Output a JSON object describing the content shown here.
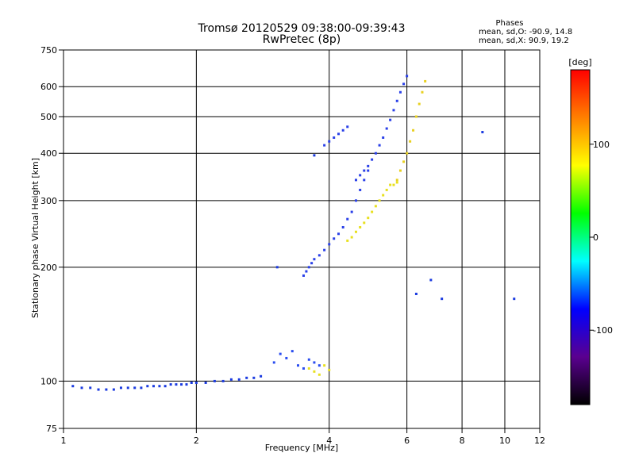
{
  "header": {
    "title_line1": "Tromsø 20120529 09:38:00-09:39:43",
    "title_line2": "RwPretec (8p)"
  },
  "stats": {
    "heading": "Phases",
    "line_o": "mean, sd,O: -90.9, 14.8",
    "line_x": "mean, sd,X:  90.9, 19.2"
  },
  "chart_data": {
    "type": "scatter",
    "xlabel": "Frequency [MHz]",
    "ylabel": "Stationary phase Virtual Height [km]",
    "x_scale": "log",
    "y_scale": "log",
    "xlim": [
      1,
      12
    ],
    "ylim": [
      75,
      750
    ],
    "grid": true,
    "x_ticks": [
      1,
      2,
      4,
      6,
      8,
      10,
      12
    ],
    "y_ticks": [
      75,
      100,
      200,
      300,
      400,
      500,
      600,
      750
    ],
    "colorbar": {
      "label": "[deg]",
      "ticks": [
        100,
        0,
        -100
      ],
      "range": [
        -180,
        180
      ],
      "colors": [
        "#000000",
        "#5a0090",
        "#0000ff",
        "#00ffff",
        "#00ff00",
        "#ffff00",
        "#ff8000",
        "#ff0000"
      ]
    },
    "series": [
      {
        "color": "#1a3ae0",
        "x": [
          1.05,
          1.1,
          1.15,
          1.2,
          1.25,
          1.3,
          1.35,
          1.4,
          1.45,
          1.5,
          1.55,
          1.6,
          1.65,
          1.7,
          1.75,
          1.8,
          1.85,
          1.9,
          1.95,
          2.0,
          2.1,
          2.2,
          2.3,
          2.4,
          2.5,
          2.6,
          2.7,
          2.8
        ],
        "y": [
          97,
          96,
          96,
          95,
          95,
          95,
          96,
          96,
          96,
          96,
          97,
          97,
          97,
          97,
          98,
          98,
          98,
          98,
          99,
          99,
          99,
          100,
          100,
          101,
          101,
          102,
          102,
          103
        ]
      },
      {
        "color": "#2a4df0",
        "x": [
          3.0,
          3.1,
          3.2,
          3.3,
          3.4,
          3.5,
          3.6,
          3.7,
          3.8
        ],
        "y": [
          112,
          118,
          115,
          120,
          110,
          108,
          114,
          112,
          110
        ]
      },
      {
        "color": "#e8e020",
        "x": [
          3.6,
          3.7,
          3.8,
          3.9,
          4.0
        ],
        "y": [
          108,
          106,
          104,
          110,
          107
        ]
      },
      {
        "color": "#2a40e8",
        "x": [
          3.5,
          3.55,
          3.6,
          3.65,
          3.7,
          3.8,
          3.9,
          4.0,
          4.1,
          4.2,
          4.3,
          4.4,
          4.5,
          4.6,
          4.7,
          4.8,
          4.9
        ],
        "y": [
          190,
          195,
          200,
          205,
          210,
          215,
          222,
          230,
          238,
          245,
          255,
          268,
          280,
          300,
          320,
          340,
          360
        ]
      },
      {
        "color": "#2a40e8",
        "x": [
          4.6,
          4.7,
          4.8,
          4.9,
          5.0,
          5.1,
          5.2,
          5.3,
          5.4,
          5.5,
          5.6,
          5.7,
          5.8,
          5.9,
          6.0
        ],
        "y": [
          340,
          350,
          360,
          370,
          385,
          400,
          420,
          440,
          465,
          490,
          520,
          550,
          580,
          610,
          640
        ]
      },
      {
        "color": "#2a40e8",
        "x": [
          3.9,
          4.0,
          4.1,
          4.2,
          4.3,
          4.4
        ],
        "y": [
          420,
          430,
          440,
          450,
          460,
          470
        ]
      },
      {
        "color": "#e8e020",
        "x": [
          4.4,
          4.5,
          4.6,
          4.7,
          4.8,
          4.9,
          5.0,
          5.1,
          5.2,
          5.3,
          5.4,
          5.5,
          5.6,
          5.7
        ],
        "y": [
          235,
          240,
          248,
          255,
          262,
          270,
          280,
          290,
          300,
          310,
          320,
          330,
          330,
          335
        ]
      },
      {
        "color": "#e8d020",
        "x": [
          5.7,
          5.8,
          5.9,
          6.0,
          6.1,
          6.2,
          6.3,
          6.4,
          6.5,
          6.6
        ],
        "y": [
          340,
          360,
          380,
          400,
          430,
          460,
          500,
          540,
          580,
          620
        ]
      },
      {
        "color": "#1a3ae0",
        "x": [
          3.05,
          3.7,
          6.3,
          6.8,
          7.2,
          8.9,
          10.5
        ],
        "y": [
          200,
          395,
          170,
          185,
          165,
          455,
          165
        ]
      }
    ]
  }
}
